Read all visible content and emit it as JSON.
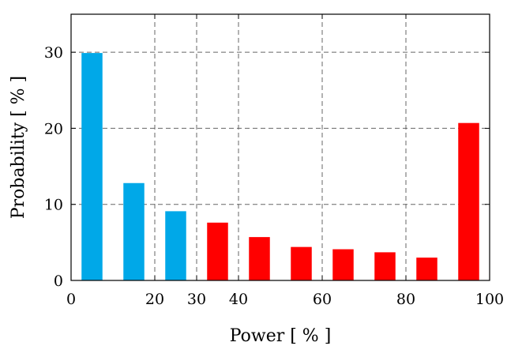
{
  "chart_data": {
    "type": "bar",
    "xlabel": "Power [ % ]",
    "ylabel": "Probability [ % ]",
    "xlim": [
      0,
      100
    ],
    "ylim": [
      0,
      35
    ],
    "xticks": [
      0,
      20,
      30,
      40,
      60,
      80,
      100
    ],
    "yticks": [
      0,
      10,
      20,
      30
    ],
    "x_gridlines": [
      20,
      30,
      40,
      60,
      80
    ],
    "y_gridlines": [
      10,
      20,
      30
    ],
    "grid": true,
    "bar_width": 5,
    "bars": [
      {
        "x": 5,
        "value": 29.9,
        "color": "#00a8e8"
      },
      {
        "x": 15,
        "value": 12.8,
        "color": "#00a8e8"
      },
      {
        "x": 25,
        "value": 9.1,
        "color": "#00a8e8"
      },
      {
        "x": 35,
        "value": 7.6,
        "color": "#ff0000"
      },
      {
        "x": 45,
        "value": 5.7,
        "color": "#ff0000"
      },
      {
        "x": 55,
        "value": 4.4,
        "color": "#ff0000"
      },
      {
        "x": 65,
        "value": 4.1,
        "color": "#ff0000"
      },
      {
        "x": 75,
        "value": 3.7,
        "color": "#ff0000"
      },
      {
        "x": 85,
        "value": 3.0,
        "color": "#ff0000"
      },
      {
        "x": 95,
        "value": 20.7,
        "color": "#ff0000"
      }
    ]
  }
}
